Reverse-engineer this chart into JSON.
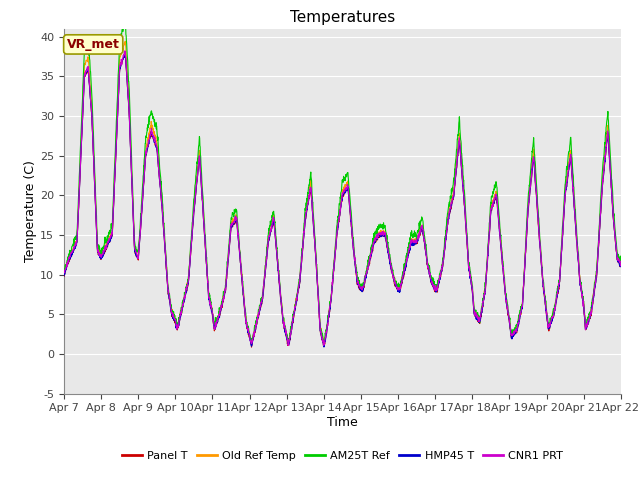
{
  "title": "Temperatures",
  "xlabel": "Time",
  "ylabel": "Temperature (C)",
  "ylim": [
    -5,
    41
  ],
  "yticks": [
    -5,
    0,
    5,
    10,
    15,
    20,
    25,
    30,
    35,
    40
  ],
  "annotation": "VR_met",
  "plot_background": "#e8e8e8",
  "fig_background": "#ffffff",
  "series_colors": [
    "#cc0000",
    "#ff9900",
    "#00cc00",
    "#0000cc",
    "#cc00cc"
  ],
  "series_names": [
    "Panel T",
    "Old Ref Temp",
    "AM25T Ref",
    "HMP45 T",
    "CNR1 PRT"
  ],
  "num_days": 15,
  "xtick_labels": [
    "Apr 7",
    "Apr 8",
    "Apr 9",
    "Apr 10",
    "Apr 11",
    "Apr 12",
    "Apr 13",
    "Apr 14",
    "Apr 15",
    "Apr 16",
    "Apr 17",
    "Apr 18",
    "Apr 19",
    "Apr 20",
    "Apr 21",
    "Apr 22"
  ],
  "title_fontsize": 11,
  "axis_label_fontsize": 9,
  "tick_fontsize": 8,
  "legend_fontsize": 8,
  "keypoints": [
    [
      0.0,
      10
    ],
    [
      0.15,
      12
    ],
    [
      0.35,
      14
    ],
    [
      0.55,
      35
    ],
    [
      0.65,
      36
    ],
    [
      0.75,
      30
    ],
    [
      0.9,
      13
    ],
    [
      1.0,
      12
    ],
    [
      1.1,
      13
    ],
    [
      1.3,
      15
    ],
    [
      1.5,
      36
    ],
    [
      1.65,
      38
    ],
    [
      1.75,
      31
    ],
    [
      1.9,
      13
    ],
    [
      2.0,
      12
    ],
    [
      2.05,
      15
    ],
    [
      2.2,
      25
    ],
    [
      2.35,
      28
    ],
    [
      2.5,
      26
    ],
    [
      2.65,
      18
    ],
    [
      2.8,
      8
    ],
    [
      2.9,
      5
    ],
    [
      3.0,
      4
    ],
    [
      3.05,
      3
    ],
    [
      3.2,
      6
    ],
    [
      3.35,
      9
    ],
    [
      3.5,
      18
    ],
    [
      3.65,
      25
    ],
    [
      3.8,
      14
    ],
    [
      3.9,
      7
    ],
    [
      4.0,
      5
    ],
    [
      4.05,
      3
    ],
    [
      4.2,
      5
    ],
    [
      4.35,
      8
    ],
    [
      4.5,
      16
    ],
    [
      4.65,
      17
    ],
    [
      4.8,
      9
    ],
    [
      4.9,
      4
    ],
    [
      5.0,
      2
    ],
    [
      5.05,
      1
    ],
    [
      5.2,
      4
    ],
    [
      5.35,
      7
    ],
    [
      5.5,
      14
    ],
    [
      5.65,
      17
    ],
    [
      5.8,
      9
    ],
    [
      5.9,
      4
    ],
    [
      6.0,
      2
    ],
    [
      6.05,
      1
    ],
    [
      6.2,
      5
    ],
    [
      6.35,
      9
    ],
    [
      6.5,
      17
    ],
    [
      6.65,
      21
    ],
    [
      6.8,
      11
    ],
    [
      6.9,
      3
    ],
    [
      7.0,
      1
    ],
    [
      7.05,
      2
    ],
    [
      7.2,
      7
    ],
    [
      7.35,
      15
    ],
    [
      7.5,
      20
    ],
    [
      7.65,
      21
    ],
    [
      7.8,
      13
    ],
    [
      7.9,
      9
    ],
    [
      8.0,
      8
    ],
    [
      8.05,
      8
    ],
    [
      8.2,
      11
    ],
    [
      8.35,
      14
    ],
    [
      8.5,
      15
    ],
    [
      8.65,
      15
    ],
    [
      8.8,
      11
    ],
    [
      8.9,
      9
    ],
    [
      9.0,
      8
    ],
    [
      9.05,
      8
    ],
    [
      9.2,
      11
    ],
    [
      9.35,
      14
    ],
    [
      9.5,
      14
    ],
    [
      9.65,
      16
    ],
    [
      9.8,
      11
    ],
    [
      9.9,
      9
    ],
    [
      10.0,
      8
    ],
    [
      10.05,
      8
    ],
    [
      10.2,
      11
    ],
    [
      10.35,
      17
    ],
    [
      10.5,
      20
    ],
    [
      10.65,
      27
    ],
    [
      10.8,
      18
    ],
    [
      10.9,
      11
    ],
    [
      11.0,
      8
    ],
    [
      11.05,
      5
    ],
    [
      11.2,
      4
    ],
    [
      11.35,
      8
    ],
    [
      11.5,
      18
    ],
    [
      11.65,
      20
    ],
    [
      11.8,
      12
    ],
    [
      11.9,
      7
    ],
    [
      12.0,
      4
    ],
    [
      12.05,
      2
    ],
    [
      12.2,
      3
    ],
    [
      12.35,
      6
    ],
    [
      12.5,
      18
    ],
    [
      12.65,
      25
    ],
    [
      12.8,
      15
    ],
    [
      12.9,
      9
    ],
    [
      13.0,
      5
    ],
    [
      13.05,
      3
    ],
    [
      13.2,
      5
    ],
    [
      13.35,
      9
    ],
    [
      13.5,
      20
    ],
    [
      13.65,
      25
    ],
    [
      13.8,
      15
    ],
    [
      13.9,
      9
    ],
    [
      14.0,
      6
    ],
    [
      14.05,
      3
    ],
    [
      14.2,
      5
    ],
    [
      14.35,
      10
    ],
    [
      14.5,
      21
    ],
    [
      14.65,
      28
    ],
    [
      14.8,
      17
    ],
    [
      14.9,
      12
    ],
    [
      15.0,
      11
    ]
  ]
}
